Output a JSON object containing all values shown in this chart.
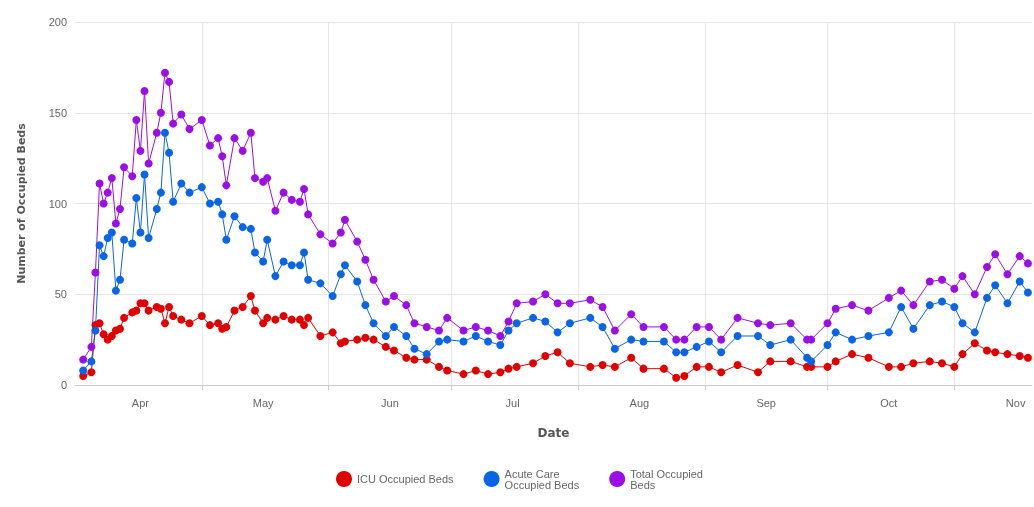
{
  "chart_data": {
    "type": "line",
    "xlabel": "Date",
    "ylabel": "Number of Occupied Beds",
    "x": [
      "--04-02",
      "--04-04",
      "--04-05",
      "--04-06",
      "--04-07",
      "--04-08",
      "--04-09",
      "--04-10",
      "--04-11",
      "--04-12",
      "--04-14",
      "--04-15",
      "--04-16",
      "--04-17",
      "--04-18",
      "--04-20",
      "--04-21",
      "--04-22",
      "--04-23",
      "--04-24",
      "--04-26",
      "--04-28",
      "--05-01",
      "--05-03",
      "--05-05",
      "--05-06",
      "--05-07",
      "--05-09",
      "--05-11",
      "--05-13",
      "--05-14",
      "--05-16",
      "--05-17",
      "--05-19",
      "--05-21",
      "--05-23",
      "--05-25",
      "--05-26",
      "--05-27",
      "--05-30",
      "--06-02",
      "--06-04",
      "--06-05",
      "--06-08",
      "--06-10",
      "--06-12",
      "--06-15",
      "--06-17",
      "--06-20",
      "--06-22",
      "--06-25",
      "--06-28",
      "--06-30",
      "--07-04",
      "--07-07",
      "--07-10",
      "--07-13",
      "--07-15",
      "--07-17",
      "--07-21",
      "--07-24",
      "--07-27",
      "--07-30",
      "--08-04",
      "--08-07",
      "--08-10",
      "--08-14",
      "--08-17",
      "--08-22",
      "--08-25",
      "--08-27",
      "--08-30",
      "--09-02",
      "--09-05",
      "--09-09",
      "--09-14",
      "--09-17",
      "--09-22",
      "--09-26",
      "--09-27",
      "--10-01",
      "--10-03",
      "--10-07",
      "--10-11",
      "--10-16",
      "--10-19",
      "--10-22",
      "--10-26",
      "--10-29",
      "--11-01",
      "--11-03",
      "--11-06",
      "--11-09",
      "--11-11",
      "--11-14",
      "--11-17",
      "--11-19"
    ],
    "series": [
      {
        "name": "ICU Occupied Beds",
        "color": "#e00000",
        "values": [
          5,
          7,
          33,
          34,
          28,
          25,
          27,
          30,
          31,
          37,
          40,
          41,
          45,
          45,
          41,
          43,
          42,
          34,
          43,
          38,
          36,
          34,
          38,
          33,
          34,
          31,
          32,
          41,
          43,
          49,
          41,
          34,
          37,
          36,
          38,
          36,
          36,
          33,
          37,
          27,
          29,
          23,
          24,
          25,
          26,
          25,
          21,
          19,
          15,
          14,
          14,
          10,
          8,
          6,
          8,
          6,
          7,
          9,
          10,
          12,
          16,
          18,
          12,
          10,
          11,
          10,
          15,
          9,
          9,
          4,
          5,
          10,
          10,
          7,
          11,
          7,
          13,
          13,
          10,
          10,
          10,
          13,
          17,
          15,
          10,
          10,
          12,
          13,
          12,
          10,
          17,
          23,
          19,
          18,
          17,
          16,
          15
        ]
      },
      {
        "name": "Acute Care Occupied Beds",
        "color": "#0a64e6",
        "values": [
          8,
          13,
          30,
          77,
          71,
          81,
          84,
          52,
          58,
          80,
          78,
          103,
          84,
          116,
          81,
          97,
          106,
          139,
          128,
          101,
          111,
          106,
          109,
          100,
          101,
          94,
          80,
          93,
          87,
          86,
          73,
          68,
          80,
          60,
          68,
          66,
          66,
          73,
          58,
          56,
          49,
          61,
          66,
          57,
          44,
          34,
          27,
          32,
          27,
          20,
          17,
          24,
          25,
          24,
          27,
          24,
          22,
          30,
          34,
          37,
          35,
          29,
          34,
          37,
          32,
          20,
          25,
          24,
          24,
          18,
          18,
          21,
          24,
          18,
          27,
          27,
          22,
          25,
          15,
          13,
          22,
          29,
          25,
          27,
          29,
          43,
          31,
          44,
          46,
          43,
          34,
          29,
          48,
          55,
          45,
          57,
          51
        ]
      },
      {
        "name": "Total Occupied Beds",
        "color": "#9b0fe6",
        "values": [
          14,
          21,
          62,
          111,
          100,
          106,
          114,
          89,
          97,
          120,
          115,
          146,
          129,
          162,
          122,
          139,
          150,
          172,
          167,
          144,
          149,
          141,
          146,
          132,
          136,
          126,
          110,
          136,
          129,
          139,
          114,
          112,
          114,
          96,
          106,
          102,
          101,
          108,
          94,
          83,
          78,
          84,
          91,
          79,
          69,
          58,
          46,
          49,
          44,
          34,
          32,
          30,
          37,
          30,
          32,
          30,
          27,
          35,
          45,
          46,
          50,
          45,
          45,
          47,
          43,
          30,
          39,
          32,
          32,
          25,
          25,
          32,
          32,
          25,
          37,
          34,
          33,
          34,
          25,
          25,
          34,
          42,
          44,
          41,
          48,
          52,
          44,
          57,
          58,
          53,
          60,
          50,
          65,
          72,
          61,
          71,
          67
        ]
      }
    ],
    "xlim": [
      "--03-31",
      "--11-20"
    ],
    "xticks": [
      {
        "value": "--04-16",
        "label": "Apr"
      },
      {
        "value": "--05-01",
        "label": null
      },
      {
        "value": "--05-16",
        "label": "May"
      },
      {
        "value": "--06-01",
        "label": null
      },
      {
        "value": "--06-16",
        "label": "Jun"
      },
      {
        "value": "--07-01",
        "label": null
      },
      {
        "value": "--07-16",
        "label": "Jul"
      },
      {
        "value": "--08-01",
        "label": null
      },
      {
        "value": "--08-16",
        "label": "Aug"
      },
      {
        "value": "--09-01",
        "label": null
      },
      {
        "value": "--09-16",
        "label": "Sep"
      },
      {
        "value": "--10-01",
        "label": null
      },
      {
        "value": "--10-16",
        "label": "Oct"
      },
      {
        "value": "--11-01",
        "label": null
      },
      {
        "value": "--11-16",
        "label": "Nov"
      }
    ],
    "ylim": [
      0,
      200
    ],
    "yticks": [
      0,
      50,
      100,
      150,
      200
    ],
    "grid": true,
    "legend": "bottom",
    "marker": "circle",
    "line_style": "solid"
  }
}
